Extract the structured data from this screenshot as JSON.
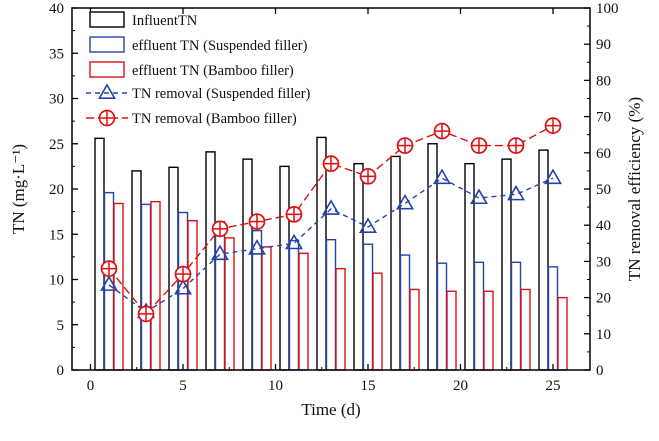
{
  "chart_data": {
    "type": "bar+line",
    "title": "",
    "xlabel": "Time (d)",
    "ylabel_left": "TN (mg·L⁻¹)",
    "ylabel_right": "TN removal efficiency (%)",
    "xlim": [
      -1,
      27
    ],
    "ylim_left": [
      0,
      40
    ],
    "ylim_right": [
      0,
      100
    ],
    "x_ticks": [
      "0",
      "5",
      "10",
      "15",
      "20",
      "25"
    ],
    "x_tick_values": [
      0,
      5,
      10,
      15,
      20,
      25
    ],
    "y_left_ticks": [
      "0",
      "5",
      "10",
      "15",
      "20",
      "25",
      "30",
      "35",
      "40"
    ],
    "y_left_tick_values": [
      0,
      5,
      10,
      15,
      20,
      25,
      30,
      35,
      40
    ],
    "y_right_ticks": [
      "0",
      "10",
      "20",
      "30",
      "40",
      "50",
      "60",
      "70",
      "80",
      "90",
      "100"
    ],
    "y_right_tick_values": [
      0,
      10,
      20,
      30,
      40,
      50,
      60,
      70,
      80,
      90,
      100
    ],
    "days": [
      1,
      3,
      5,
      7,
      9,
      11,
      13,
      15,
      17,
      19,
      21,
      23,
      25
    ],
    "bar_series": [
      {
        "name": "InfluentTN",
        "color": "#000000",
        "values": [
          25.6,
          22.0,
          22.4,
          24.1,
          23.3,
          22.5,
          25.7,
          22.8,
          23.6,
          25.0,
          22.8,
          23.3,
          24.3
        ]
      },
      {
        "name": "effluent TN (Suspended filler)",
        "color": "#2244aa",
        "values": [
          19.6,
          18.3,
          17.4,
          16.4,
          15.4,
          14.3,
          14.4,
          13.9,
          12.7,
          11.8,
          11.9,
          11.9,
          11.4
        ]
      },
      {
        "name": "effluent TN (Bamboo filler)",
        "color": "#dd1111",
        "values": [
          18.4,
          18.6,
          16.5,
          14.6,
          13.6,
          12.9,
          11.2,
          10.7,
          8.9,
          8.7,
          8.7,
          8.9,
          8.0
        ]
      }
    ],
    "line_series": [
      {
        "name": "TN removal (Suspended filler)",
        "color": "#2244aa",
        "marker": "triangle",
        "values": [
          23.5,
          16.0,
          22.5,
          32.0,
          33.5,
          35.0,
          44.5,
          39.5,
          46.0,
          53.0,
          47.5,
          48.5,
          53.0
        ]
      },
      {
        "name": "TN removal (Bamboo filler)",
        "color": "#dd1111",
        "marker": "circle-cross",
        "values": [
          28.0,
          15.5,
          26.5,
          39.0,
          41.0,
          43.0,
          57.0,
          53.5,
          62.0,
          66.0,
          62.0,
          62.0,
          67.5
        ]
      }
    ]
  }
}
